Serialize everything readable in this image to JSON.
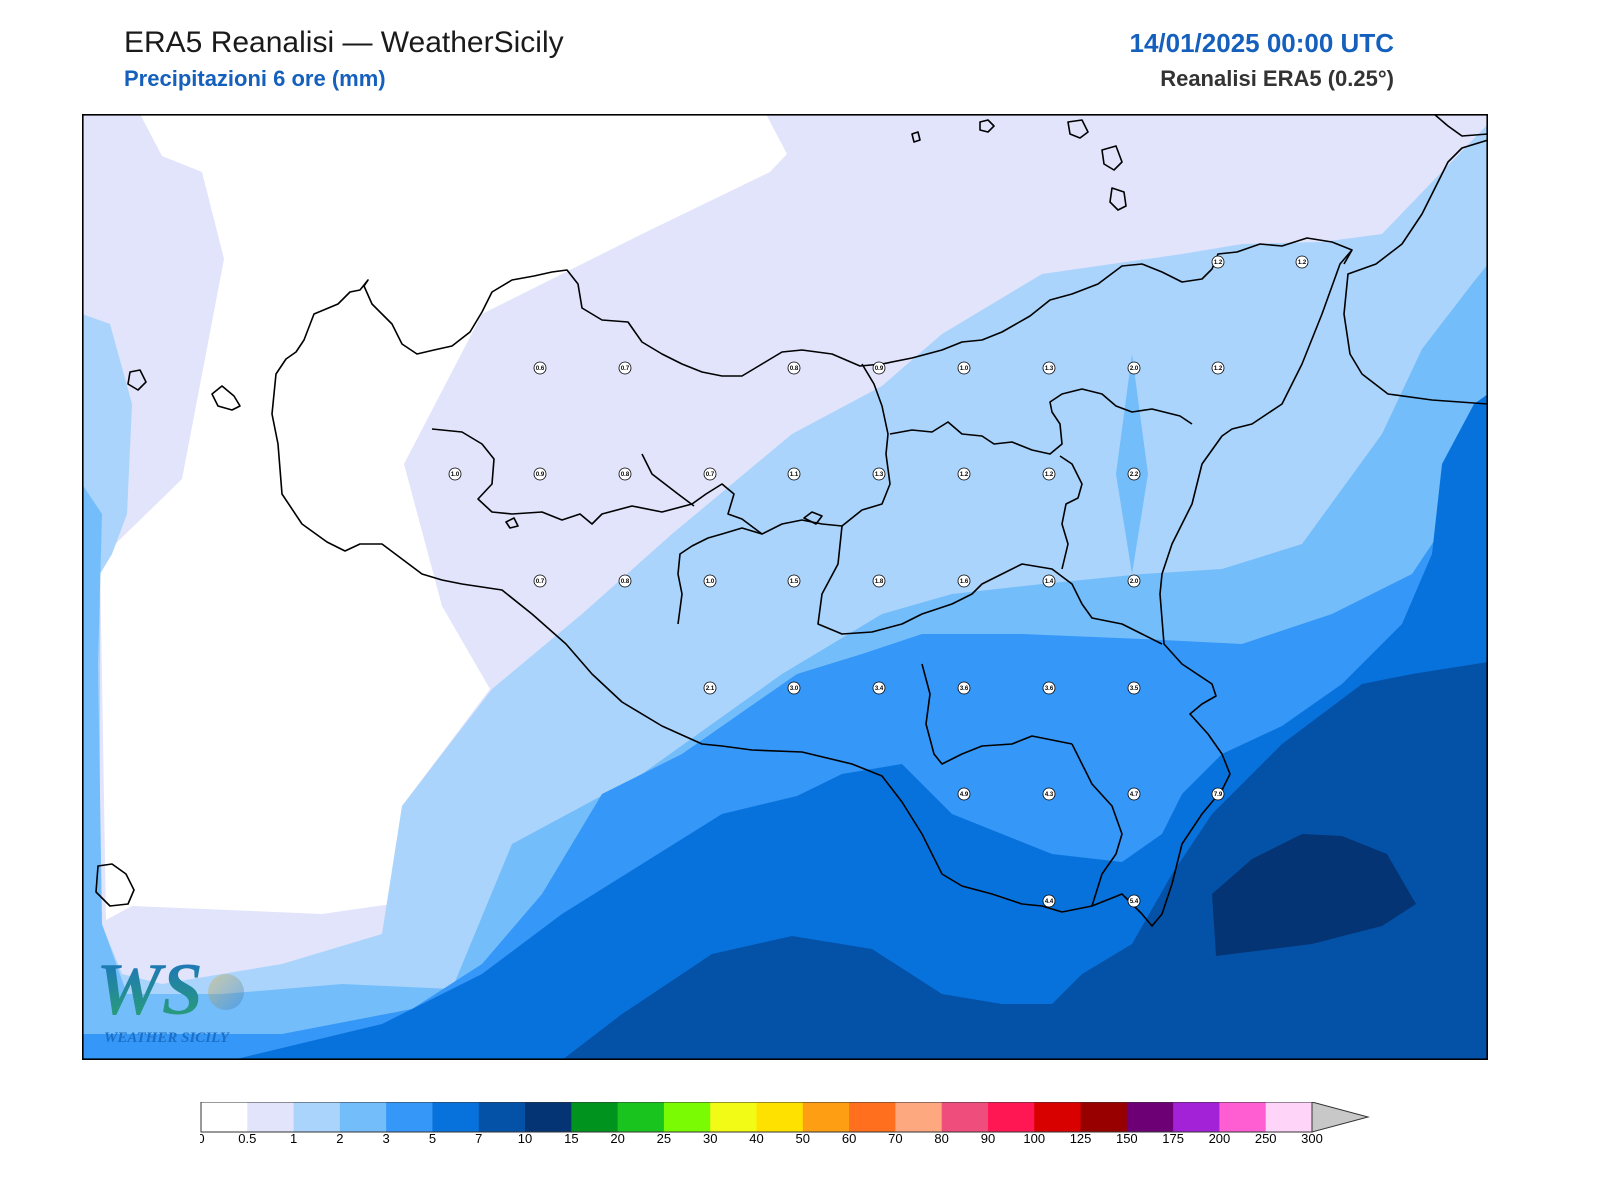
{
  "header": {
    "title": "ERA5 Reanalisi — WeatherSicily",
    "subtitle": "Precipitazioni 6 ore (mm)",
    "datetime": "14/01/2025 00:00 UTC",
    "source": "Reanalisi ERA5 (0.25°)"
  },
  "logo": {
    "letters": "WS",
    "brand": "WEATHER SICILY"
  },
  "stations": [
    {
      "label": "0.6",
      "value": 0.6
    },
    {
      "label": "0.7",
      "value": 0.7
    },
    {
      "label": "0.8",
      "value": 0.8
    },
    {
      "label": "0.9",
      "value": 0.9
    },
    {
      "label": "1.0",
      "value": 1.0
    },
    {
      "label": "1.3",
      "value": 1.3
    },
    {
      "label": "2.0",
      "value": 2.0
    },
    {
      "label": "1.2",
      "value": 1.2
    },
    {
      "label": "1.0",
      "value": 1.0
    },
    {
      "label": "0.9",
      "value": 0.9
    },
    {
      "label": "0.8",
      "value": 0.8
    },
    {
      "label": "0.7",
      "value": 0.7
    },
    {
      "label": "1.1",
      "value": 1.1
    },
    {
      "label": "1.3",
      "value": 1.3
    },
    {
      "label": "1.2",
      "value": 1.2
    },
    {
      "label": "1.2",
      "value": 1.2
    },
    {
      "label": "2.2",
      "value": 2.2
    },
    {
      "label": "0.7",
      "value": 0.7
    },
    {
      "label": "0.8",
      "value": 0.8
    },
    {
      "label": "1.0",
      "value": 1.0
    },
    {
      "label": "1.5",
      "value": 1.5
    },
    {
      "label": "1.8",
      "value": 1.8
    },
    {
      "label": "1.6",
      "value": 1.6
    },
    {
      "label": "1.4",
      "value": 1.4
    },
    {
      "label": "2.0",
      "value": 2.0
    },
    {
      "label": "2.1",
      "value": 2.1
    },
    {
      "label": "3.0",
      "value": 3.0
    },
    {
      "label": "3.4",
      "value": 3.4
    },
    {
      "label": "3.6",
      "value": 3.6
    },
    {
      "label": "3.6",
      "value": 3.6
    },
    {
      "label": "3.5",
      "value": 3.5
    },
    {
      "label": "4.9",
      "value": 4.9
    },
    {
      "label": "4.3",
      "value": 4.3
    },
    {
      "label": "4.7",
      "value": 4.7
    },
    {
      "label": "7.9",
      "value": 7.9
    },
    {
      "label": "4.4",
      "value": 4.4
    },
    {
      "label": "5.4",
      "value": 5.4
    },
    {
      "label": "1.2",
      "value": 1.2
    },
    {
      "label": "1.2",
      "value": 1.2
    }
  ],
  "legend": {
    "ticks": [
      "0",
      "0.5",
      "1",
      "2",
      "3",
      "5",
      "7",
      "10",
      "15",
      "20",
      "25",
      "30",
      "40",
      "50",
      "60",
      "70",
      "80",
      "90",
      "100",
      "125",
      "150",
      "175",
      "200",
      "250",
      "300"
    ],
    "colors": [
      "#ffffff",
      "#e1e4fb",
      "#aad4fb",
      "#74bdfb",
      "#3597f7",
      "#0872dc",
      "#0452a8",
      "#053474",
      "#00941f",
      "#1ac41f",
      "#7bfb03",
      "#f1fb15",
      "#ffe100",
      "#fe9e13",
      "#ff6f1d",
      "#fea880",
      "#ef4e7c",
      "#ff1754",
      "#d90000",
      "#980000",
      "#6e0076",
      "#a321d6",
      "#ff5ed2",
      "#fed4f8"
    ],
    "extend_color": "#c8c8c8"
  },
  "colors": {
    "accent": "#1560bd",
    "coastline": "#000000"
  }
}
